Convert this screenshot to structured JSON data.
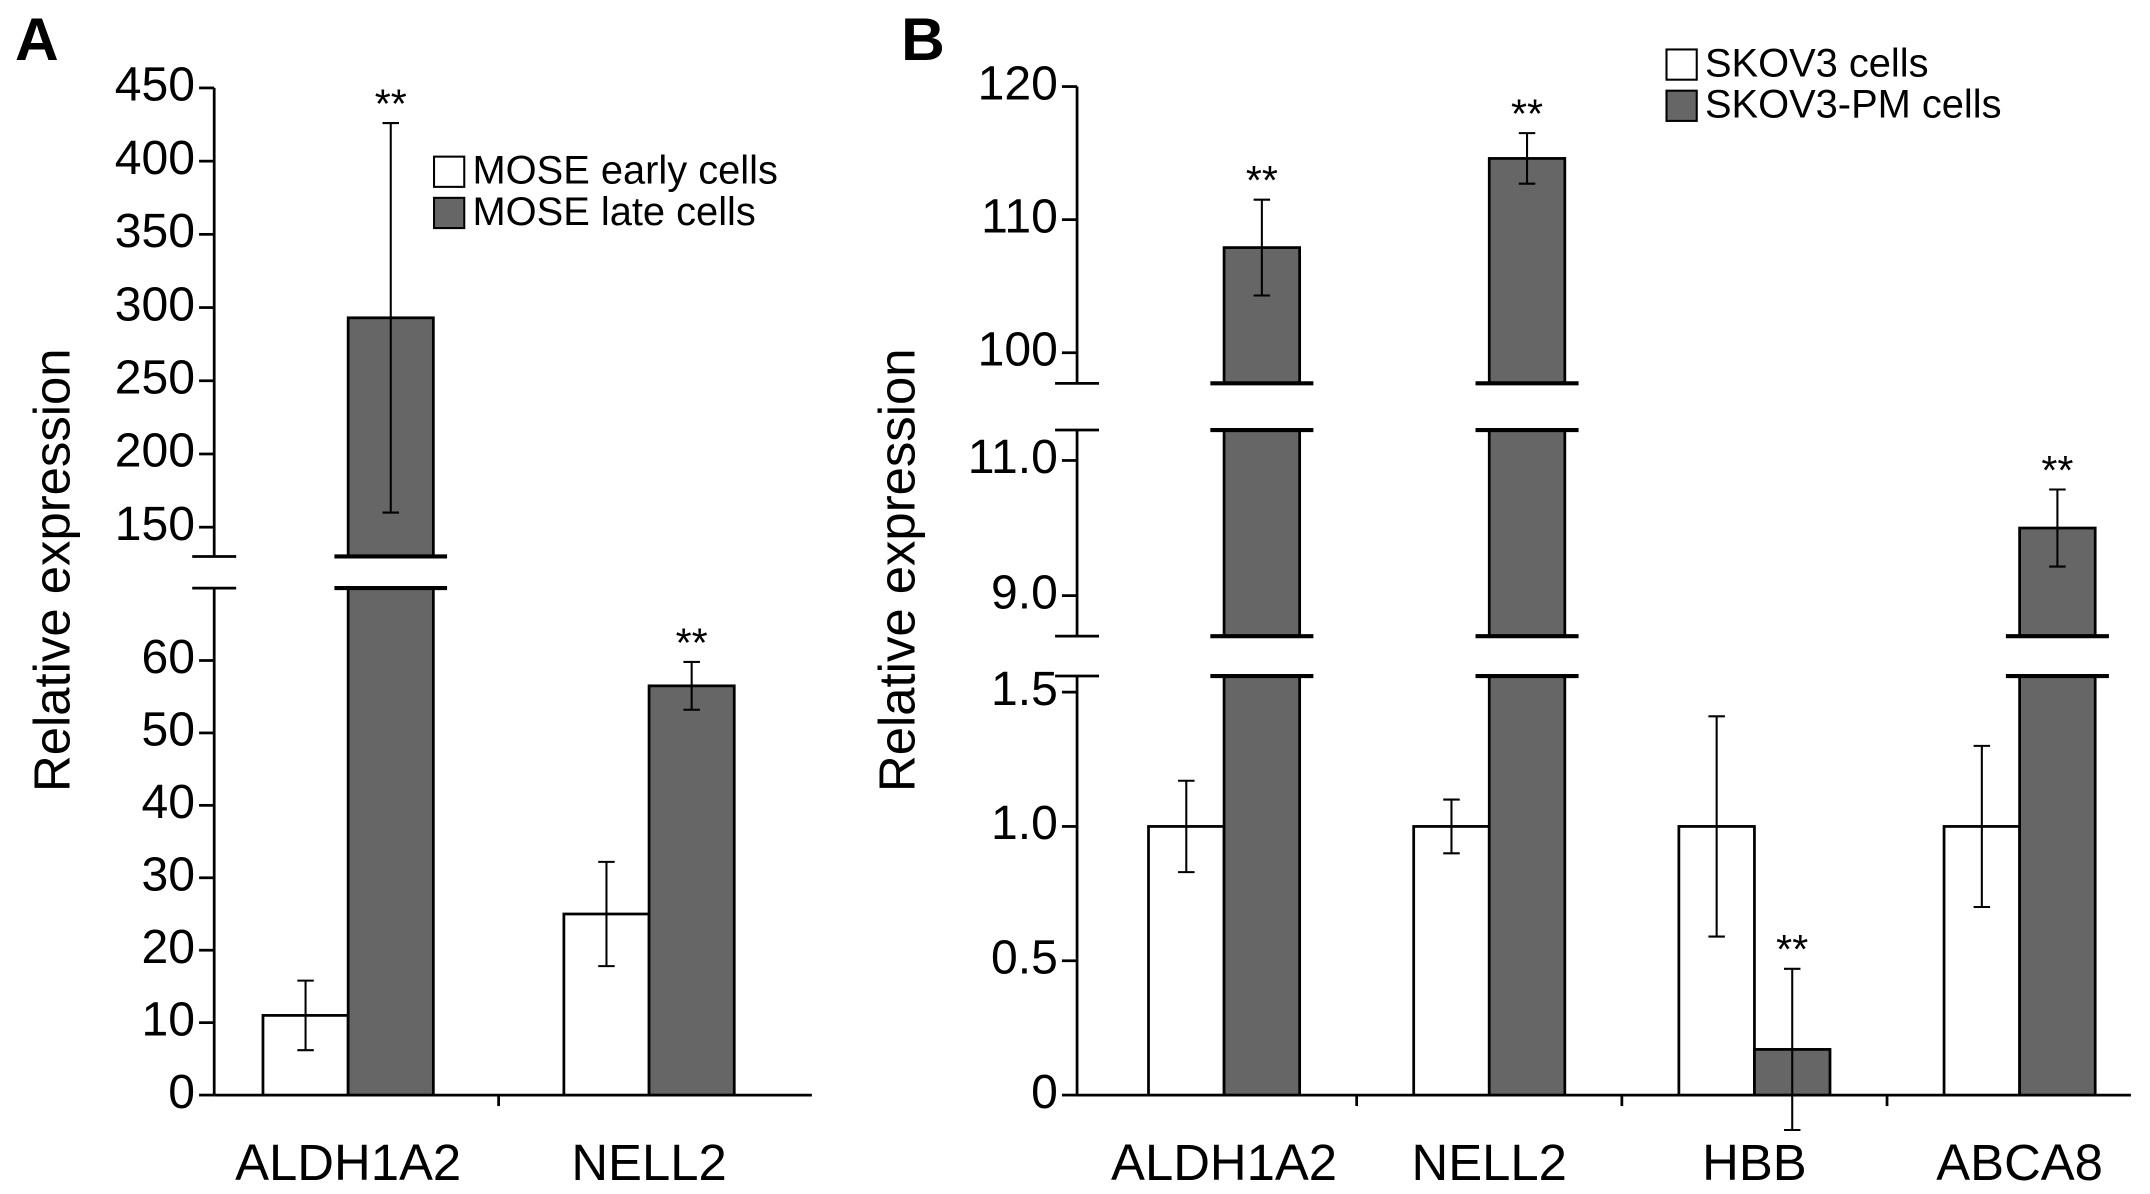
{
  "chart_data": [
    {
      "type": "bar",
      "panel_label": "A",
      "ylabel": "Relative expression",
      "categories": [
        "ALDH1A2",
        "NELL2"
      ],
      "series": [
        {
          "name": "MOSE early cells",
          "color": "#ffffff",
          "values": [
            11,
            25
          ],
          "errors": [
            4.8,
            7.2
          ]
        },
        {
          "name": "MOSE late cells",
          "color": "#666666",
          "values": [
            293,
            56.5
          ],
          "errors": [
            133,
            3.3
          ],
          "annotations": [
            "**",
            "**"
          ]
        }
      ],
      "y_segments": [
        {
          "ylim": [
            0,
            70
          ],
          "yticks": [
            0,
            10,
            20,
            30,
            40,
            50,
            60
          ]
        },
        {
          "ylim": [
            130,
            450
          ],
          "yticks": [
            150,
            200,
            250,
            300,
            350,
            400,
            450
          ]
        }
      ]
    },
    {
      "type": "bar",
      "panel_label": "B",
      "ylabel": "Relative expression",
      "categories": [
        "ALDH1A2",
        "NELL2",
        "HBB",
        "ABCA8"
      ],
      "series": [
        {
          "name": "SKOV3 cells",
          "color": "#ffffff",
          "values": [
            1,
            1,
            1,
            1
          ],
          "errors": [
            0.17,
            0.1,
            0.41,
            0.3
          ]
        },
        {
          "name": "SKOV3-PM cells",
          "color": "#666666",
          "values": [
            107.9,
            114.6,
            0.17,
            10
          ],
          "errors": [
            3.6,
            1.9,
            0.3,
            0.57
          ],
          "annotations": [
            "**",
            "**",
            "**",
            "**"
          ]
        }
      ],
      "y_segments": [
        {
          "ylim": [
            0,
            1.56
          ],
          "yticks": [
            0,
            0.5,
            {
              "value": 1,
              "label": "1.0"
            },
            1.5
          ]
        },
        {
          "ylim": [
            8.4,
            11.45
          ],
          "yticks": [
            {
              "value": 9,
              "label": "9.0"
            },
            {
              "value": 11,
              "label": "11.0"
            }
          ]
        },
        {
          "ylim": [
            97.7,
            120
          ],
          "yticks": [
            100,
            110,
            120
          ]
        }
      ]
    }
  ]
}
